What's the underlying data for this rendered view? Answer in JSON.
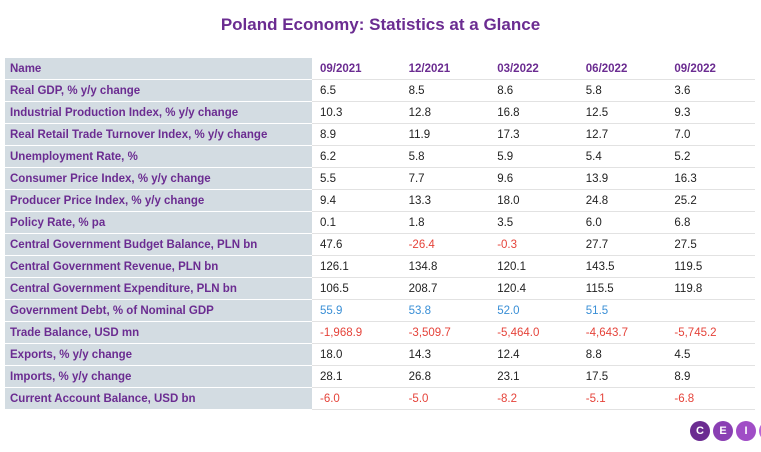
{
  "title": "Poland Economy: Statistics at a Glance",
  "header": {
    "name": "Name",
    "columns": [
      "09/2021",
      "12/2021",
      "03/2022",
      "06/2022",
      "09/2022"
    ]
  },
  "rows": [
    {
      "name": "Real GDP, % y/y change",
      "values": [
        "6.5",
        "8.5",
        "8.6",
        "5.8",
        "3.6"
      ]
    },
    {
      "name": "Industrial Production Index, % y/y change",
      "values": [
        "10.3",
        "12.8",
        "16.8",
        "12.5",
        "9.3"
      ]
    },
    {
      "name": "Real Retail Trade Turnover Index, % y/y change",
      "values": [
        "8.9",
        "11.9",
        "17.3",
        "12.7",
        "7.0"
      ]
    },
    {
      "name": "Unemployment Rate, %",
      "values": [
        "6.2",
        "5.8",
        "5.9",
        "5.4",
        "5.2"
      ]
    },
    {
      "name": "Consumer Price Index, % y/y change",
      "values": [
        "5.5",
        "7.7",
        "9.6",
        "13.9",
        "16.3"
      ]
    },
    {
      "name": "Producer Price Index, % y/y change",
      "values": [
        "9.4",
        "13.3",
        "18.0",
        "24.8",
        "25.2"
      ]
    },
    {
      "name": "Policy Rate, % pa",
      "values": [
        "0.1",
        "1.8",
        "3.5",
        "6.0",
        "6.8"
      ]
    },
    {
      "name": "Central Government Budget Balance, PLN bn",
      "values": [
        "47.6",
        "-26.4",
        "-0.3",
        "27.7",
        "27.5"
      ]
    },
    {
      "name": "Central Government Revenue, PLN bn",
      "values": [
        "126.1",
        "134.8",
        "120.1",
        "143.5",
        "119.5"
      ]
    },
    {
      "name": "Central Government Expenditure, PLN bn",
      "values": [
        "106.5",
        "208.7",
        "120.4",
        "115.5",
        "119.8"
      ]
    },
    {
      "name": "Government Debt, % of Nominal GDP",
      "values": [
        "55.9",
        "53.8",
        "52.0",
        "51.5",
        ""
      ],
      "color": "blue"
    },
    {
      "name": "Trade Balance, USD mn",
      "values": [
        "-1,968.9",
        "-3,509.7",
        "-5,464.0",
        "-4,643.7",
        "-5,745.2"
      ]
    },
    {
      "name": "Exports, % y/y change",
      "values": [
        "18.0",
        "14.3",
        "12.4",
        "8.8",
        "4.5"
      ]
    },
    {
      "name": "Imports, % y/y change",
      "values": [
        "28.1",
        "26.8",
        "23.1",
        "17.5",
        "8.9"
      ]
    },
    {
      "name": "Current Account Balance, USD bn",
      "values": [
        "-6.0",
        "-5.0",
        "-8.2",
        "-5.1",
        "-6.8"
      ]
    }
  ],
  "colors": {
    "title": "#6b2c91",
    "name_column_bg": "#d3dce2",
    "negative": "#e5433a",
    "highlight_blue": "#3a8fd6"
  },
  "logo": {
    "letters": [
      "C",
      "E",
      "I",
      "C"
    ]
  }
}
